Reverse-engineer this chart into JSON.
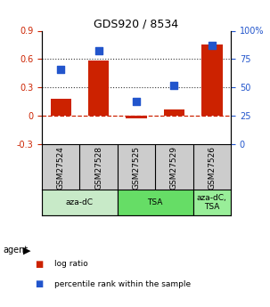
{
  "title": "GDS920 / 8534",
  "samples": [
    "GSM27524",
    "GSM27528",
    "GSM27525",
    "GSM27529",
    "GSM27526"
  ],
  "log_ratio": [
    0.18,
    0.585,
    -0.03,
    0.07,
    0.75
  ],
  "percentile_rank": [
    66,
    82,
    38,
    52,
    87
  ],
  "bar_color": "#cc2200",
  "dot_color": "#2255cc",
  "ylim_left": [
    -0.3,
    0.9
  ],
  "ylim_right": [
    0,
    100
  ],
  "yticks_left": [
    -0.3,
    0.0,
    0.3,
    0.6,
    0.9
  ],
  "ytick_labels_left": [
    "-0.3",
    "0",
    "0.3",
    "0.6",
    "0.9"
  ],
  "yticks_right": [
    0,
    25,
    50,
    75,
    100
  ],
  "ytick_labels_right": [
    "0",
    "25",
    "50",
    "75",
    "100%"
  ],
  "hlines_dotted": [
    0.3,
    0.6
  ],
  "hline_zero_color": "#cc2200",
  "hline_dotted_color": "#333333",
  "agent_groups": [
    {
      "label": "aza-dC",
      "span": [
        0,
        2
      ],
      "color": "#c8eac8"
    },
    {
      "label": "TSA",
      "span": [
        2,
        4
      ],
      "color": "#66dd66"
    },
    {
      "label": "aza-dC,\nTSA",
      "span": [
        4,
        5
      ],
      "color": "#99ee99"
    }
  ],
  "agent_label": "agent",
  "legend_items": [
    {
      "color": "#cc2200",
      "label": "log ratio"
    },
    {
      "color": "#2255cc",
      "label": "percentile rank within the sample"
    }
  ],
  "bar_width": 0.55,
  "dot_size": 35,
  "background_color": "#ffffff",
  "sample_bg": "#cccccc",
  "bar_xlim": [
    -0.5,
    4.5
  ]
}
